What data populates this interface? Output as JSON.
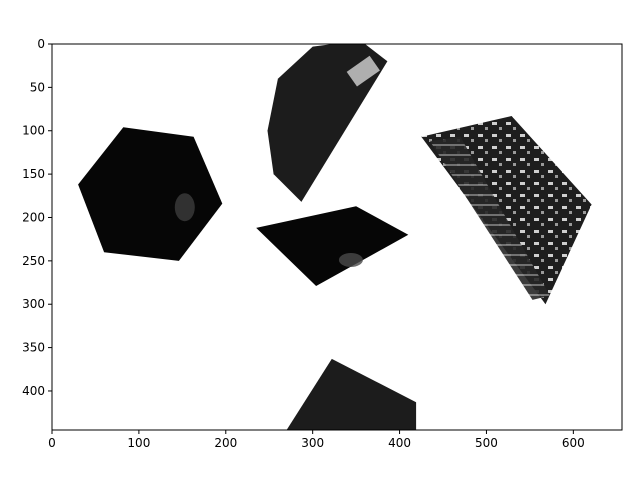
{
  "chart_data": {
    "type": "image",
    "title": "",
    "xlabel": "",
    "ylabel": "",
    "xlim": [
      0,
      656
    ],
    "ylim": [
      445,
      0
    ],
    "y_inverted": true,
    "grid": false,
    "xticks": [
      0,
      100,
      200,
      300,
      400,
      500,
      600
    ],
    "yticks": [
      0,
      50,
      100,
      150,
      200,
      250,
      300,
      350,
      400
    ],
    "colors": {
      "background": "#ffffff",
      "patch_dark": "#060606",
      "patch_mid": "#1c1c1c",
      "highlight": "#c9c9c9"
    },
    "patches": [
      {
        "name": "hexagon-patch",
        "shape": "polygon",
        "points": [
          [
            82,
            96
          ],
          [
            163,
            107
          ],
          [
            196,
            184
          ],
          [
            146,
            250
          ],
          [
            60,
            240
          ],
          [
            30,
            162
          ]
        ]
      },
      {
        "name": "quarter-disc-patch",
        "shape": "sector",
        "center": [
          326,
          108
        ],
        "radius": 78,
        "start_angle_deg": -48,
        "end_angle_deg": -90,
        "points": [
          [
            386,
            20
          ],
          [
            355,
            -4
          ],
          [
            300,
            3
          ],
          [
            260,
            40
          ],
          [
            248,
            100
          ],
          [
            255,
            150
          ],
          [
            287,
            182
          ]
        ]
      },
      {
        "name": "triangle-wedge-patch",
        "shape": "polygon",
        "points": [
          [
            235,
            212
          ],
          [
            350,
            187
          ],
          [
            410,
            220
          ],
          [
            304,
            279
          ]
        ]
      },
      {
        "name": "urban-quadrilateral-patch",
        "shape": "polygon",
        "points": [
          [
            425,
            107
          ],
          [
            529,
            83
          ],
          [
            621,
            185
          ],
          [
            568,
            300
          ]
        ]
      },
      {
        "name": "bottom-patch",
        "shape": "polygon",
        "points": [
          [
            270,
            445
          ],
          [
            322,
            363
          ],
          [
            419,
            413
          ],
          [
            419,
            445
          ]
        ]
      }
    ]
  }
}
